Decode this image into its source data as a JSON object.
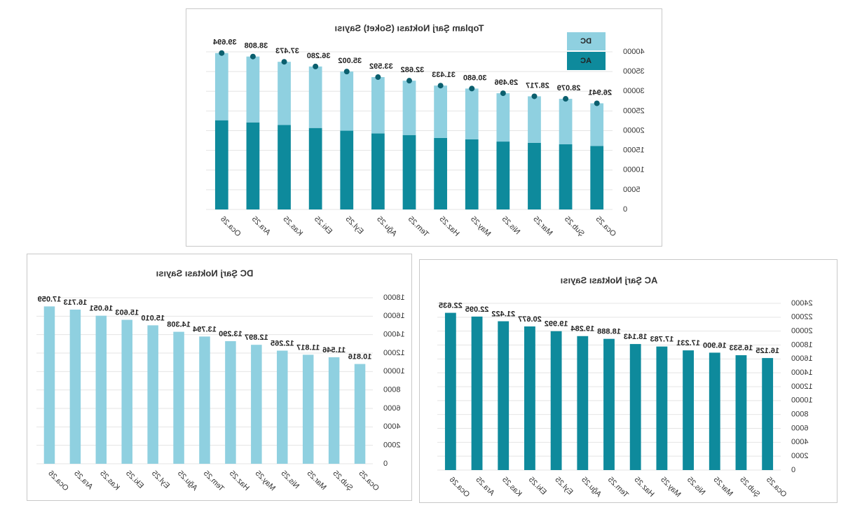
{
  "chart_data": [
    {
      "type": "bar",
      "stacked": true,
      "title": "Toplam Şarj Noktası (Soket) Sayısı",
      "categories": [
        "Oca.25",
        "Şub.25",
        "Mar.25",
        "Nis.25",
        "May.25",
        "Haz.25",
        "Tem.25",
        "Ağu.25",
        "Eyl.25",
        "Eki.25",
        "Kas.25",
        "Ara.25",
        "Oca.26"
      ],
      "series": [
        {
          "name": "AC",
          "color": "#0e8a9c",
          "values": [
            16125,
            16533,
            16900,
            17231,
            17783,
            18143,
            18888,
            19284,
            19992,
            20677,
            21422,
            22095,
            22635
          ]
        },
        {
          "name": "DC",
          "color": "#8fd0e0",
          "values": [
            10816,
            11546,
            11817,
            12265,
            12897,
            13290,
            13794,
            14308,
            15010,
            15603,
            16051,
            16713,
            17059
          ]
        }
      ],
      "totals": {
        "color": "#0b5f6e",
        "values": [
          26941,
          28079,
          28717,
          29496,
          30680,
          31433,
          32682,
          33592,
          35002,
          36280,
          37473,
          38808,
          39694
        ],
        "value_labels": [
          "26.941",
          "28.079",
          "28.717",
          "29.496",
          "30.680",
          "31.433",
          "32.682",
          "33.592",
          "35.002",
          "36.280",
          "37.473",
          "38.808",
          "39.694"
        ]
      },
      "ylim": [
        0,
        40000
      ],
      "yticks": [
        0,
        5000,
        10000,
        15000,
        20000,
        25000,
        30000,
        35000,
        40000
      ],
      "legend": "top-left"
    },
    {
      "type": "bar",
      "title": "AC Şarj Noktası Sayısı",
      "categories": [
        "Oca.25",
        "Şub.25",
        "Mar.25",
        "Nis.25",
        "May.25",
        "Haz.25",
        "Tem.25",
        "Ağu.25",
        "Eyl.25",
        "Eki.25",
        "Kas.25",
        "Ara.25",
        "Oca.26"
      ],
      "series": [
        {
          "name": "AC",
          "color": "#0e8a9c",
          "values": [
            16125,
            16533,
            16900,
            17231,
            17783,
            18143,
            18888,
            19284,
            19992,
            20677,
            21422,
            22095,
            22635
          ],
          "value_labels": [
            "16.125",
            "16.533",
            "16.900",
            "17.231",
            "17.783",
            "18.143",
            "18.888",
            "19.284",
            "19.992",
            "20.677",
            "21.422",
            "22.095",
            "22.635"
          ]
        }
      ],
      "ylim": [
        0,
        24000
      ],
      "yticks": [
        0,
        2000,
        4000,
        6000,
        8000,
        10000,
        12000,
        14000,
        16000,
        18000,
        20000,
        22000,
        24000
      ]
    },
    {
      "type": "bar",
      "title": "DC Şarj Noktası Sayısı",
      "categories": [
        "Oca.25",
        "Şub.25",
        "Mar.25",
        "Nis.25",
        "May.25",
        "Haz.25",
        "Tem.25",
        "Ağu.25",
        "Eyl.25",
        "Eki.25",
        "Kas.25",
        "Ara.25",
        "Oca.26"
      ],
      "series": [
        {
          "name": "DC",
          "color": "#8fd0e0",
          "values": [
            10816,
            11546,
            11817,
            12265,
            12897,
            13290,
            13794,
            14308,
            15010,
            15603,
            16051,
            16713,
            17059
          ],
          "value_labels": [
            "10.816",
            "11.546",
            "11.817",
            "12.265",
            "12.897",
            "13.290",
            "13.794",
            "14.308",
            "15.010",
            "15.603",
            "16.051",
            "16.713",
            "17.059"
          ]
        }
      ],
      "ylim": [
        0,
        18000
      ],
      "yticks": [
        0,
        2000,
        4000,
        6000,
        8000,
        10000,
        12000,
        14000,
        16000,
        18000
      ]
    }
  ]
}
